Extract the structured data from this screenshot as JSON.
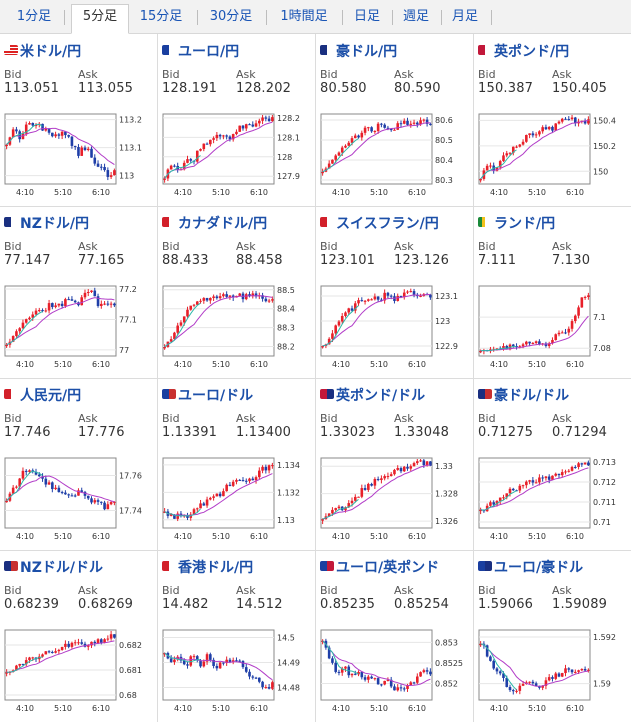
{
  "tabs": [
    {
      "label": "1分足"
    },
    {
      "label": "5分足",
      "active": true
    },
    {
      "label": "15分足"
    },
    {
      "label": "30分足"
    },
    {
      "label": "1時間足"
    },
    {
      "label": "日足"
    },
    {
      "label": "週足"
    },
    {
      "label": "月足"
    }
  ],
  "quote_labels": {
    "bid": "Bid",
    "ask": "Ask"
  },
  "time_labels": [
    "4:10",
    "5:10",
    "6:10"
  ],
  "colors": {
    "up": "#e8202a",
    "down": "#1f3fa8",
    "ma_fast": "#2bb8a8",
    "ma_slow": "#b23dc8"
  },
  "pairs": [
    {
      "name": "米ドル/円",
      "flag": "us-flag-icon",
      "bid": "113.051",
      "ask": "113.055",
      "chart_data": {
        "type": "candlestick",
        "y_ticks": [
          "113.2",
          "113.1",
          "113"
        ],
        "ylim": [
          112.97,
          113.22
        ],
        "path": [
          113.12,
          113.16,
          113.13,
          113.2,
          113.18,
          113.17,
          113.15,
          113.14,
          113.16,
          113.12,
          113.08,
          113.1,
          113.06,
          113.03,
          113.0,
          113.02
        ]
      }
    },
    {
      "name": "ユーロ/円",
      "flag": "eu-jp-flag-icon",
      "bid": "128.191",
      "ask": "128.202",
      "chart_data": {
        "type": "candlestick",
        "y_ticks": [
          "128.2",
          "128.1",
          "128",
          "127.9"
        ],
        "ylim": [
          127.86,
          128.22
        ],
        "path": [
          127.9,
          127.95,
          127.93,
          128.0,
          127.98,
          128.05,
          128.08,
          128.1,
          128.12,
          128.1,
          128.14,
          128.15,
          128.16,
          128.18,
          128.2,
          128.19
        ]
      }
    },
    {
      "name": "豪ドル/円",
      "flag": "au-jp-flag-icon",
      "bid": "80.580",
      "ask": "80.590",
      "chart_data": {
        "type": "candlestick",
        "y_ticks": [
          "80.6",
          "80.5",
          "80.4",
          "80.3"
        ],
        "ylim": [
          80.28,
          80.63
        ],
        "path": [
          80.35,
          80.38,
          80.42,
          80.47,
          80.5,
          80.52,
          80.56,
          80.55,
          80.58,
          80.57,
          80.56,
          80.58,
          80.59,
          80.58,
          80.6,
          80.58
        ]
      }
    },
    {
      "name": "英ポンド/円",
      "flag": "gb-jp-flag-icon",
      "bid": "150.387",
      "ask": "150.405",
      "chart_data": {
        "type": "candlestick",
        "y_ticks": [
          "150.4",
          "150.2",
          "150"
        ],
        "ylim": [
          149.9,
          150.45
        ],
        "path": [
          149.95,
          150.05,
          150.02,
          150.12,
          150.15,
          150.2,
          150.25,
          150.28,
          150.3,
          150.35,
          150.33,
          150.38,
          150.42,
          150.4,
          150.38,
          150.39
        ]
      }
    },
    {
      "name": "NZドル/円",
      "flag": "nz-jp-flag-icon",
      "bid": "77.147",
      "ask": "77.165",
      "chart_data": {
        "type": "candlestick",
        "y_ticks": [
          "77.2",
          "77.1",
          "77"
        ],
        "ylim": [
          76.98,
          77.21
        ],
        "path": [
          77.02,
          77.05,
          77.08,
          77.1,
          77.12,
          77.13,
          77.15,
          77.14,
          77.16,
          77.17,
          77.15,
          77.18,
          77.19,
          77.14,
          77.16,
          77.15
        ]
      }
    },
    {
      "name": "カナダドル/円",
      "flag": "ca-jp-flag-icon",
      "bid": "88.433",
      "ask": "88.458",
      "chart_data": {
        "type": "candlestick",
        "y_ticks": [
          "88.5",
          "88.4",
          "88.3",
          "88.2"
        ],
        "ylim": [
          88.15,
          88.52
        ],
        "path": [
          88.2,
          88.25,
          88.32,
          88.38,
          88.42,
          88.44,
          88.45,
          88.47,
          88.46,
          88.48,
          88.47,
          88.46,
          88.48,
          88.47,
          88.45,
          88.44
        ]
      }
    },
    {
      "name": "スイスフラン/円",
      "flag": "ch-jp-flag-icon",
      "bid": "123.101",
      "ask": "123.126",
      "chart_data": {
        "type": "candlestick",
        "y_ticks": [
          "123.1",
          "123",
          "122.9"
        ],
        "ylim": [
          122.86,
          123.14
        ],
        "path": [
          122.9,
          122.94,
          122.98,
          123.02,
          123.05,
          123.08,
          123.07,
          123.1,
          123.09,
          123.11,
          123.08,
          123.1,
          123.12,
          123.1,
          123.11,
          123.1
        ]
      }
    },
    {
      "name": "ランド/円",
      "flag": "za-jp-flag-icon",
      "bid": "7.111",
      "ask": "7.130",
      "chart_data": {
        "type": "candlestick",
        "y_ticks": [
          "7.1",
          "7.08"
        ],
        "ylim": [
          7.075,
          7.12
        ],
        "path": [
          7.078,
          7.08,
          7.081,
          7.079,
          7.082,
          7.08,
          7.083,
          7.081,
          7.084,
          7.082,
          7.085,
          7.09,
          7.088,
          7.1,
          7.112,
          7.113
        ]
      }
    },
    {
      "name": "人民元/円",
      "flag": "cn-jp-flag-icon",
      "bid": "17.746",
      "ask": "17.776",
      "chart_data": {
        "type": "candlestick",
        "y_ticks": [
          "17.76",
          "17.74"
        ],
        "ylim": [
          17.73,
          17.77
        ],
        "path": [
          17.745,
          17.752,
          17.76,
          17.765,
          17.762,
          17.757,
          17.754,
          17.752,
          17.75,
          17.749,
          17.751,
          17.747,
          17.745,
          17.743,
          17.742,
          17.746
        ]
      }
    },
    {
      "name": "ユーロ/ドル",
      "flag": "eu-us-flag-icon",
      "bid": "1.13391",
      "ask": "1.13400",
      "chart_data": {
        "type": "candlestick",
        "y_ticks": [
          "1.134",
          "1.132",
          "1.13"
        ],
        "ylim": [
          1.1294,
          1.1345
        ],
        "path": [
          1.1305,
          1.1302,
          1.1304,
          1.1302,
          1.1306,
          1.131,
          1.1315,
          1.1318,
          1.132,
          1.1325,
          1.1328,
          1.1326,
          1.133,
          1.1334,
          1.1338,
          1.1339
        ]
      }
    },
    {
      "name": "英ポンド/ドル",
      "flag": "gb-us-flag-icon",
      "bid": "1.33023",
      "ask": "1.33048",
      "chart_data": {
        "type": "candlestick",
        "y_ticks": [
          "1.33",
          "1.328",
          "1.326"
        ],
        "ylim": [
          1.3255,
          1.3306
        ],
        "path": [
          1.326,
          1.3265,
          1.3268,
          1.327,
          1.3275,
          1.328,
          1.3285,
          1.3288,
          1.329,
          1.3293,
          1.3296,
          1.3298,
          1.3301,
          1.3304,
          1.3302,
          1.3302
        ]
      }
    },
    {
      "name": "豪ドル/ドル",
      "flag": "au-us-flag-icon",
      "bid": "0.71275",
      "ask": "0.71294",
      "chart_data": {
        "type": "candlestick",
        "y_ticks": [
          "0.713",
          "0.712",
          "0.711",
          "0.71"
        ],
        "ylim": [
          0.7097,
          0.7132
        ],
        "path": [
          0.7105,
          0.7108,
          0.711,
          0.7112,
          0.7115,
          0.7117,
          0.7118,
          0.712,
          0.7121,
          0.7123,
          0.7122,
          0.7124,
          0.7126,
          0.7128,
          0.7129,
          0.7128
        ]
      }
    },
    {
      "name": "NZドル/ドル",
      "flag": "nz-us-flag-icon",
      "bid": "0.68239",
      "ask": "0.68269",
      "chart_data": {
        "type": "candlestick",
        "y_ticks": [
          "0.682",
          "0.681",
          "0.68"
        ],
        "ylim": [
          0.6798,
          0.6826
        ],
        "path": [
          0.6808,
          0.681,
          0.6813,
          0.6815,
          0.6814,
          0.6817,
          0.6818,
          0.6817,
          0.6819,
          0.6821,
          0.682,
          0.6819,
          0.6821,
          0.6822,
          0.6822,
          0.6824
        ]
      }
    },
    {
      "name": "香港ドル/円",
      "flag": "hk-jp-flag-icon",
      "bid": "14.482",
      "ask": "14.512",
      "chart_data": {
        "type": "candlestick",
        "y_ticks": [
          "14.5",
          "14.49",
          "14.48"
        ],
        "ylim": [
          14.475,
          14.503
        ],
        "path": [
          14.495,
          14.49,
          14.492,
          14.487,
          14.494,
          14.489,
          14.493,
          14.488,
          14.491,
          14.49,
          14.492,
          14.487,
          14.485,
          14.482,
          14.479,
          14.482
        ]
      }
    },
    {
      "name": "ユーロ/英ポンド",
      "flag": "eu-gb-flag-icon",
      "bid": "0.85235",
      "ask": "0.85254",
      "chart_data": {
        "type": "candlestick",
        "y_ticks": [
          "0.853",
          "0.8525",
          "0.852"
        ],
        "ylim": [
          0.8516,
          0.8533
        ],
        "path": [
          0.8531,
          0.8526,
          0.8523,
          0.8524,
          0.8522,
          0.8523,
          0.8521,
          0.8522,
          0.852,
          0.8521,
          0.8519,
          0.8518,
          0.852,
          0.8521,
          0.8524,
          0.8523
        ]
      }
    },
    {
      "name": "ユーロ/豪ドル",
      "flag": "eu-au-flag-icon",
      "bid": "1.59066",
      "ask": "1.59089",
      "chart_data": {
        "type": "candlestick",
        "y_ticks": [
          "1.592",
          "1.59"
        ],
        "ylim": [
          1.5893,
          1.5923
        ],
        "path": [
          1.5918,
          1.5912,
          1.5906,
          1.5902,
          1.5898,
          1.5897,
          1.5899,
          1.59,
          1.5898,
          1.5901,
          1.5903,
          1.5904,
          1.5906,
          1.5905,
          1.5907,
          1.5906
        ]
      }
    }
  ]
}
